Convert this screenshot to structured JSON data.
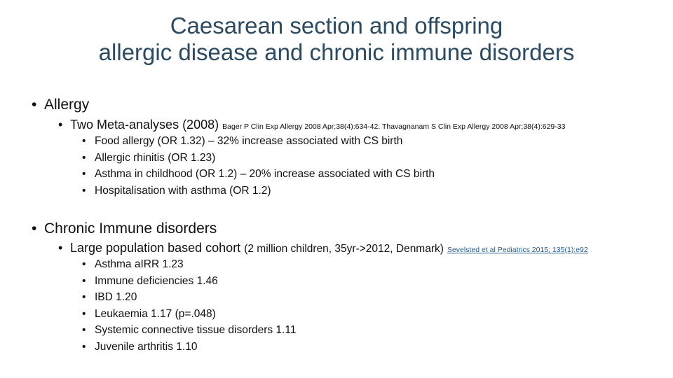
{
  "title": {
    "lines": [
      "Caesarean section and offspring",
      "allergic disease and chronic immune disorders"
    ]
  },
  "sections": [
    {
      "heading": "Allergy",
      "sub": {
        "text": "Two Meta-analyses (2008)",
        "note": "Bager P Clin Exp Allergy 2008 Apr;38(4):634-42. Thavagnanam S Clin Exp Allergy 2008 Apr;38(4):629-33"
      },
      "items": [
        "Food allergy (OR 1.32) – 32% increase associated with CS birth",
        "Allergic rhinitis (OR 1.23)",
        "Asthma in childhood (OR 1.2) – 20% increase associated with CS birth",
        "Hospitalisation with asthma (OR 1.2)"
      ]
    },
    {
      "heading": "Chronic Immune disorders",
      "sub": {
        "text": "Large population based cohort",
        "detail": "(2 million children, 35yr->2012, Denmark)",
        "link": "Sevelsted et al Pediatrics 2015; 135(1):e92"
      },
      "items": [
        "Asthma aIRR 1.23",
        "Immune deficiencies 1.46",
        "IBD 1.20",
        "Leukaemia 1.17 (p=.048)",
        "Systemic connective tissue disorders 1.11",
        "Juvenile arthritis 1.10"
      ]
    }
  ]
}
